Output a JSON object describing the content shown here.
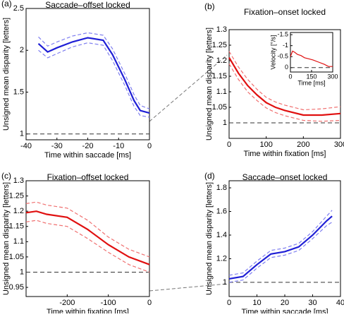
{
  "chart_data": [
    {
      "type": "line",
      "panel": "(a)",
      "title": "Saccade–offset locked",
      "xlabel": "Time within saccade [ms]",
      "ylabel": "Unsigned mean disparity [letters]",
      "x": [
        -36,
        -33,
        -30,
        -25,
        -20,
        -15,
        -12,
        -8,
        -5,
        -3,
        0
      ],
      "values": [
        2.08,
        1.98,
        2.03,
        2.1,
        2.15,
        2.12,
        1.95,
        1.65,
        1.4,
        1.28,
        1.25
      ],
      "lower": [
        2.0,
        1.91,
        1.96,
        2.04,
        2.09,
        2.06,
        1.88,
        1.58,
        1.33,
        1.22,
        1.2
      ],
      "upper": [
        2.16,
        2.05,
        2.1,
        2.17,
        2.21,
        2.18,
        2.02,
        1.72,
        1.47,
        1.34,
        1.3
      ],
      "color": "#1f1fd6",
      "band_color": "#7f7ff0",
      "hline": 1,
      "xlim": [
        -40,
        0
      ],
      "xticks": [
        -40,
        -30,
        -20,
        -10,
        0
      ],
      "ylim": [
        0.93,
        2.5
      ],
      "yticks": [
        1,
        1.5,
        2,
        2.5
      ]
    },
    {
      "type": "line",
      "panel": "(b)",
      "title": "Fixation–onset locked",
      "xlabel": "Time within fixation [ms]",
      "ylabel": "Unsigned mean disparity [letters]",
      "x": [
        0,
        25,
        50,
        75,
        100,
        125,
        150,
        200,
        250,
        300
      ],
      "values": [
        1.21,
        1.16,
        1.12,
        1.09,
        1.065,
        1.05,
        1.04,
        1.025,
        1.025,
        1.03
      ],
      "lower": [
        1.19,
        1.14,
        1.1,
        1.072,
        1.048,
        1.033,
        1.023,
        1.008,
        1.005,
        1.008
      ],
      "upper": [
        1.23,
        1.18,
        1.14,
        1.108,
        1.082,
        1.067,
        1.057,
        1.042,
        1.045,
        1.052
      ],
      "color": "#e01010",
      "band_color": "#f07070",
      "hline": 1,
      "xlim": [
        0,
        300
      ],
      "xticks": [
        0,
        100,
        200,
        300
      ],
      "ylim": [
        0.95,
        1.3
      ],
      "yticks": [
        1,
        1.05,
        1.1,
        1.15,
        1.2,
        1.25,
        1.3
      ],
      "inset": {
        "xlabel": "Time [ms]",
        "ylabel": "Velocity [°/s]",
        "x": [
          0,
          15,
          30,
          50,
          75,
          100,
          130,
          160,
          200,
          240,
          270,
          300
        ],
        "values": [
          -0.5,
          -0.75,
          -0.7,
          -0.6,
          -0.55,
          -0.45,
          -0.4,
          -0.35,
          -0.25,
          -0.15,
          -0.05,
          -0.05
        ],
        "color": "#e01010",
        "hline": 0,
        "xlim": [
          0,
          300
        ],
        "xticks": [
          0,
          150,
          300
        ],
        "ylim": [
          0.2,
          -1.6
        ],
        "yticks": [
          -1.5,
          -1,
          -0.5,
          0
        ]
      }
    },
    {
      "type": "line",
      "panel": "(c)",
      "title": "Fixation–offset locked",
      "xlabel": "Time within fixation [ms]",
      "ylabel": "Unsigned mean disparity [letters]",
      "x": [
        -300,
        -275,
        -250,
        -200,
        -150,
        -100,
        -50,
        0
      ],
      "values": [
        1.195,
        1.2,
        1.19,
        1.18,
        1.14,
        1.09,
        1.05,
        1.025
      ],
      "lower": [
        1.165,
        1.17,
        1.16,
        1.15,
        1.11,
        1.065,
        1.025,
        1.0
      ],
      "upper": [
        1.225,
        1.23,
        1.22,
        1.21,
        1.17,
        1.115,
        1.075,
        1.05
      ],
      "color": "#e01010",
      "band_color": "#f07070",
      "hline": 1,
      "xlim": [
        -300,
        0
      ],
      "xticks": [
        -200,
        -100,
        0
      ],
      "ylim": [
        0.92,
        1.3
      ],
      "yticks": [
        0.95,
        1,
        1.05,
        1.1,
        1.15,
        1.2,
        1.25,
        1.3
      ]
    },
    {
      "type": "line",
      "panel": "(d)",
      "title": "Saccade–onset locked",
      "xlabel": "Time within saccade [ms]",
      "ylabel": "Unsigned mean disparity [letters]",
      "x": [
        0,
        5,
        10,
        15,
        20,
        25,
        30,
        35,
        37
      ],
      "values": [
        1.03,
        1.05,
        1.15,
        1.24,
        1.26,
        1.3,
        1.4,
        1.52,
        1.56
      ],
      "lower": [
        1.0,
        1.02,
        1.12,
        1.21,
        1.23,
        1.27,
        1.37,
        1.48,
        1.51
      ],
      "upper": [
        1.06,
        1.08,
        1.18,
        1.27,
        1.29,
        1.33,
        1.43,
        1.56,
        1.61
      ],
      "color": "#1f1fd6",
      "band_color": "#7f7ff0",
      "hline": 1,
      "xlim": [
        0,
        40
      ],
      "xticks": [
        0,
        10,
        20,
        30,
        40
      ],
      "ylim": [
        0.88,
        1.86
      ],
      "yticks": [
        1,
        1.2,
        1.4,
        1.6,
        1.8
      ]
    }
  ]
}
